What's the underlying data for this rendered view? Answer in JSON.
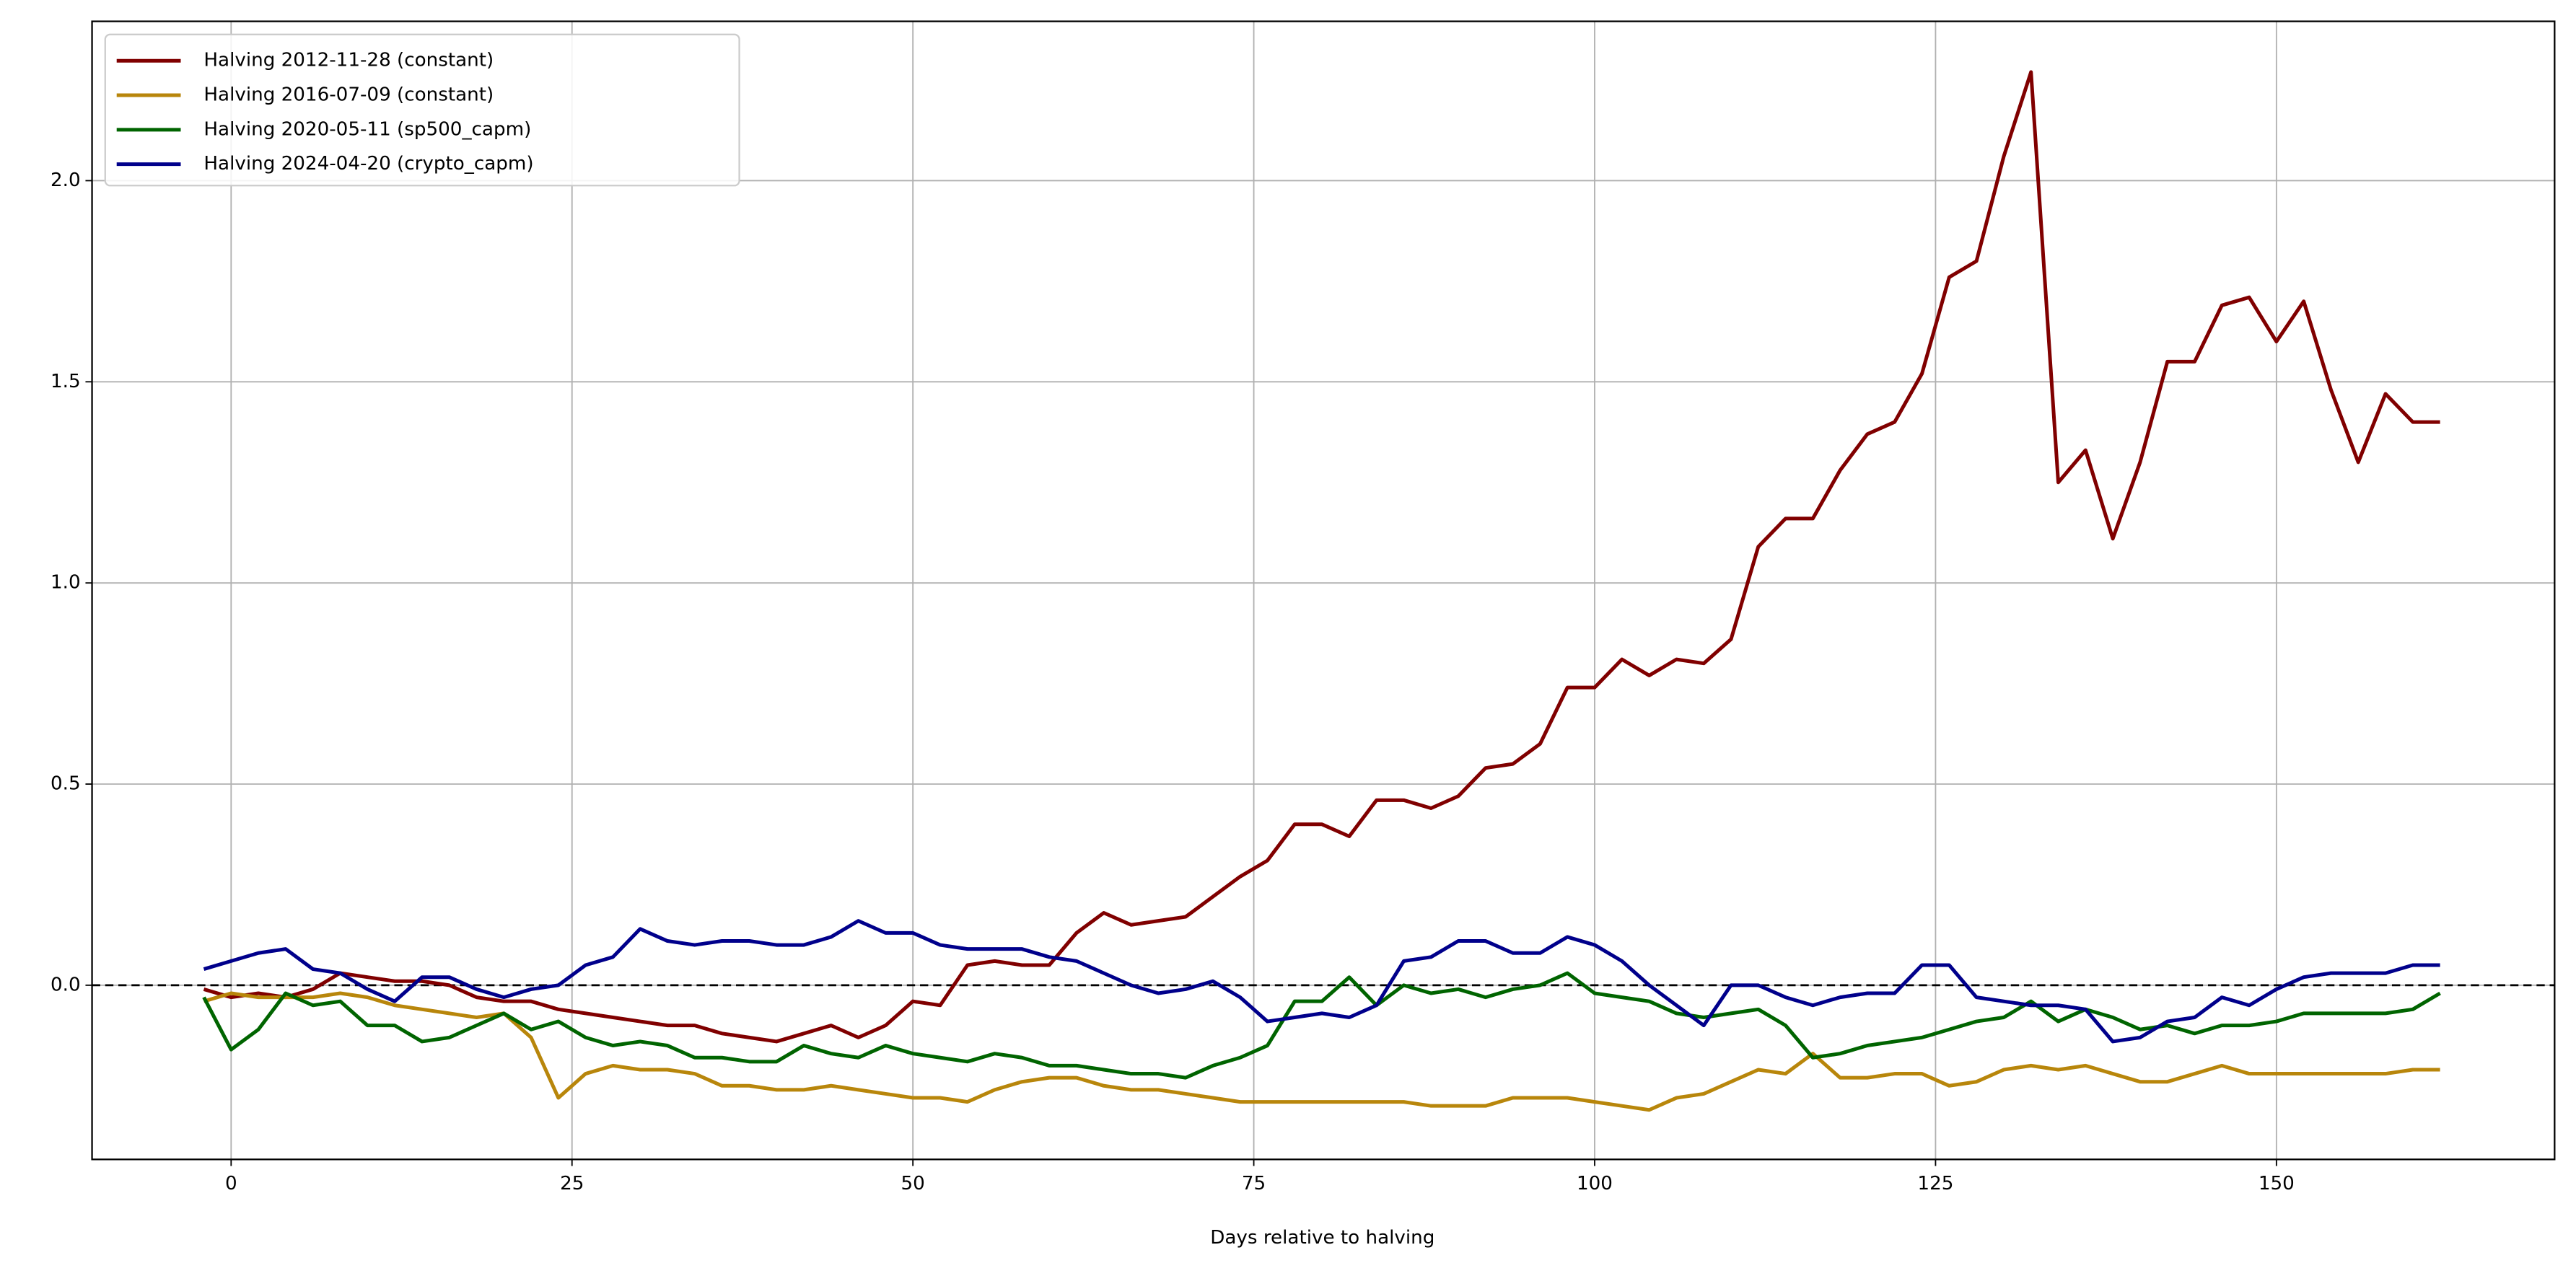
{
  "chart_data": {
    "type": "line",
    "xlabel": "Days relative to halving",
    "x": [
      -2,
      0,
      2,
      4,
      6,
      8,
      10,
      12,
      14,
      16,
      18,
      20,
      22,
      24,
      26,
      28,
      30,
      32,
      34,
      36,
      38,
      40,
      42,
      44,
      46,
      48,
      50,
      52,
      54,
      56,
      58,
      60,
      62,
      64,
      66,
      68,
      70,
      72,
      74,
      76,
      78,
      80,
      82,
      84,
      86,
      88,
      90,
      92,
      94,
      96,
      98,
      100,
      102,
      104,
      106,
      108,
      110,
      112,
      114,
      116,
      118,
      120,
      122,
      124,
      126,
      128,
      130,
      132,
      134,
      136,
      138,
      140,
      142,
      144,
      146,
      148,
      150,
      152,
      154,
      156,
      158,
      160,
      162
    ],
    "series": [
      {
        "name": "Halving 2012-11-28 (constant)",
        "color": "#800000",
        "values": [
          -0.01,
          -0.03,
          -0.02,
          -0.03,
          -0.01,
          0.03,
          0.02,
          0.01,
          0.01,
          0.0,
          -0.03,
          -0.04,
          -0.04,
          -0.06,
          -0.07,
          -0.08,
          -0.09,
          -0.1,
          -0.1,
          -0.12,
          -0.13,
          -0.14,
          -0.12,
          -0.1,
          -0.13,
          -0.1,
          -0.04,
          -0.05,
          0.05,
          0.06,
          0.05,
          0.05,
          0.13,
          0.18,
          0.15,
          0.16,
          0.17,
          0.22,
          0.27,
          0.31,
          0.4,
          0.4,
          0.37,
          0.46,
          0.46,
          0.44,
          0.47,
          0.54,
          0.55,
          0.6,
          0.74,
          0.74,
          0.81,
          0.77,
          0.81,
          0.8,
          0.86,
          1.09,
          1.16,
          1.16,
          1.28,
          1.37,
          1.4,
          1.52,
          1.76,
          1.8,
          2.06,
          2.27,
          1.25,
          1.33,
          1.11,
          1.3,
          1.55,
          1.55,
          1.69,
          1.71,
          1.6,
          1.7,
          1.48,
          1.3,
          1.47,
          1.4,
          1.4
        ]
      },
      {
        "name": "Halving 2016-07-09 (constant)",
        "color": "#b8860b",
        "values": [
          -0.04,
          -0.02,
          -0.03,
          -0.03,
          -0.03,
          -0.02,
          -0.03,
          -0.05,
          -0.06,
          -0.07,
          -0.08,
          -0.07,
          -0.13,
          -0.28,
          -0.22,
          -0.2,
          -0.21,
          -0.21,
          -0.22,
          -0.25,
          -0.25,
          -0.26,
          -0.26,
          -0.25,
          -0.26,
          -0.27,
          -0.28,
          -0.28,
          -0.29,
          -0.26,
          -0.24,
          -0.23,
          -0.23,
          -0.25,
          -0.26,
          -0.26,
          -0.27,
          -0.28,
          -0.29,
          -0.29,
          -0.29,
          -0.29,
          -0.29,
          -0.29,
          -0.29,
          -0.3,
          -0.3,
          -0.3,
          -0.28,
          -0.28,
          -0.28,
          -0.29,
          -0.3,
          -0.31,
          -0.28,
          -0.27,
          -0.24,
          -0.21,
          -0.22,
          -0.17,
          -0.23,
          -0.23,
          -0.22,
          -0.22,
          -0.25,
          -0.24,
          -0.21,
          -0.2,
          -0.21,
          -0.2,
          -0.22,
          -0.24,
          -0.24,
          -0.22,
          -0.2,
          -0.22,
          -0.22,
          -0.22,
          -0.22,
          -0.22,
          -0.22,
          -0.21,
          -0.21
        ]
      },
      {
        "name": "Halving 2020-05-11 (sp500_capm)",
        "color": "#006400",
        "values": [
          -0.03,
          -0.16,
          -0.11,
          -0.02,
          -0.05,
          -0.04,
          -0.1,
          -0.1,
          -0.14,
          -0.13,
          -0.1,
          -0.07,
          -0.11,
          -0.09,
          -0.13,
          -0.15,
          -0.14,
          -0.15,
          -0.18,
          -0.18,
          -0.19,
          -0.19,
          -0.15,
          -0.17,
          -0.18,
          -0.15,
          -0.17,
          -0.18,
          -0.19,
          -0.17,
          -0.18,
          -0.2,
          -0.2,
          -0.21,
          -0.22,
          -0.22,
          -0.23,
          -0.2,
          -0.18,
          -0.15,
          -0.04,
          -0.04,
          0.02,
          -0.05,
          0.0,
          -0.02,
          -0.01,
          -0.03,
          -0.01,
          0.0,
          0.03,
          -0.02,
          -0.03,
          -0.04,
          -0.07,
          -0.08,
          -0.07,
          -0.06,
          -0.1,
          -0.18,
          -0.17,
          -0.15,
          -0.14,
          -0.13,
          -0.11,
          -0.09,
          -0.08,
          -0.04,
          -0.09,
          -0.06,
          -0.08,
          -0.11,
          -0.1,
          -0.12,
          -0.1,
          -0.1,
          -0.09,
          -0.07,
          -0.07,
          -0.07,
          -0.07,
          -0.06,
          -0.02
        ]
      },
      {
        "name": "Halving 2024-04-20 (crypto_capm)",
        "color": "#00008b",
        "values": [
          0.04,
          0.06,
          0.08,
          0.09,
          0.04,
          0.03,
          -0.01,
          -0.04,
          0.02,
          0.02,
          -0.01,
          -0.03,
          -0.01,
          0.0,
          0.05,
          0.07,
          0.14,
          0.11,
          0.1,
          0.11,
          0.11,
          0.1,
          0.1,
          0.12,
          0.16,
          0.13,
          0.13,
          0.1,
          0.09,
          0.09,
          0.09,
          0.07,
          0.06,
          0.03,
          0.0,
          -0.02,
          -0.01,
          0.01,
          -0.03,
          -0.09,
          -0.08,
          -0.07,
          -0.08,
          -0.05,
          0.06,
          0.07,
          0.11,
          0.11,
          0.08,
          0.08,
          0.12,
          0.1,
          0.06,
          0.0,
          -0.05,
          -0.1,
          0.0,
          0.0,
          -0.03,
          -0.05,
          -0.03,
          -0.02,
          -0.02,
          0.05,
          0.05,
          -0.03,
          -0.04,
          -0.05,
          -0.05,
          -0.06,
          -0.14,
          -0.13,
          -0.09,
          -0.08,
          -0.03,
          -0.05,
          -0.01,
          0.02,
          0.03,
          0.03,
          0.03,
          0.05,
          0.05
        ]
      }
    ],
    "hline": 0,
    "xlim": [
      -10.2,
      170.4
    ],
    "ylim": [
      -0.433,
      2.396
    ],
    "xticks": [
      0,
      25,
      50,
      75,
      100,
      125,
      150
    ],
    "yticks": [
      {
        "value": 0,
        "label": "0.0"
      },
      0.5,
      {
        "value": 1,
        "label": "1.0"
      },
      1.5,
      {
        "value": 2,
        "label": "2.0"
      }
    ],
    "grid": true,
    "legend": "upper-left"
  }
}
